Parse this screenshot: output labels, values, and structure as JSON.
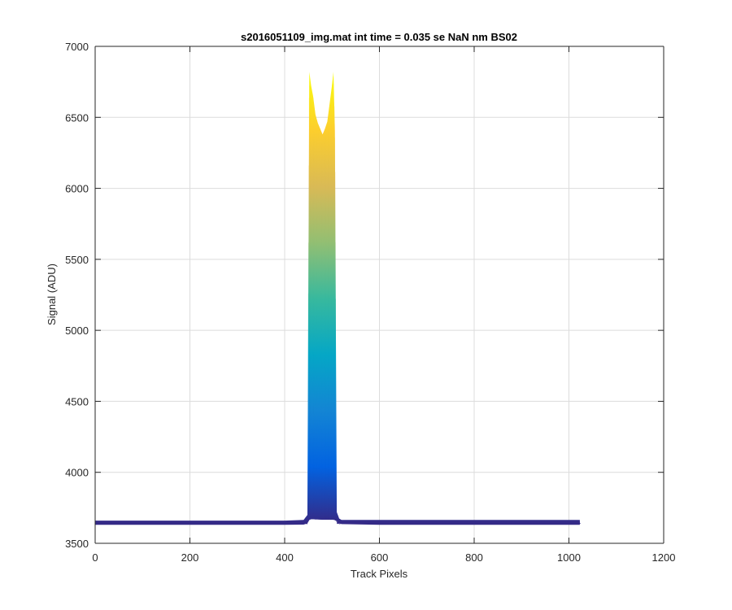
{
  "chart_data": {
    "type": "area",
    "title": "s2016051109_img.mat int time = 0.035 se  NaN nm BS02",
    "xlabel": "Track Pixels",
    "ylabel": "Signal (ADU)",
    "xlim": [
      0,
      1200
    ],
    "ylim": [
      3500,
      7000
    ],
    "xticks": [
      0,
      200,
      400,
      600,
      800,
      1000,
      1200
    ],
    "yticks": [
      3500,
      4000,
      4500,
      5000,
      5500,
      6000,
      6500,
      7000
    ],
    "xtick_labels": [
      "0",
      "200",
      "400",
      "600",
      "800",
      "1000",
      "1200"
    ],
    "ytick_labels": [
      "3500",
      "4000",
      "4500",
      "5000",
      "5500",
      "6000",
      "6500",
      "7000"
    ],
    "grid": true,
    "colormap": "parula",
    "colormap_stops": [
      "#352a87",
      "#0363e1",
      "#1485d4",
      "#06a7c6",
      "#38b99e",
      "#92bf73",
      "#d9ba56",
      "#fcce2e",
      "#f9fb0e"
    ],
    "baseline_level": 3645,
    "baseline_noise": 10,
    "x": [
      0,
      200,
      400,
      440,
      448,
      452,
      456,
      460,
      465,
      470,
      475,
      480,
      485,
      490,
      495,
      500,
      503,
      506,
      510,
      515,
      520,
      600,
      800,
      1000,
      1023
    ],
    "upper_envelope": [
      3660,
      3660,
      3660,
      3665,
      3700,
      6820,
      6720,
      6650,
      6520,
      6460,
      6420,
      6380,
      6420,
      6470,
      6600,
      6730,
      6820,
      6400,
      3720,
      3675,
      3665,
      3665,
      3665,
      3665,
      3665
    ],
    "lower_envelope": [
      3630,
      3630,
      3630,
      3632,
      3640,
      3665,
      3670,
      3670,
      3668,
      3668,
      3667,
      3666,
      3666,
      3666,
      3666,
      3666,
      3666,
      3663,
      3655,
      3645,
      3635,
      3630,
      3630,
      3630,
      3630
    ]
  }
}
